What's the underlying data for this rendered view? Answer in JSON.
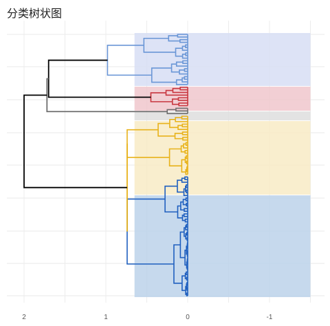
{
  "title": "分类树状图",
  "chart_data": {
    "type": "dendrogram",
    "orientation": "horizontal",
    "x_reversed": true,
    "xlim": [
      2.1,
      -1.5
    ],
    "xticks": [
      2,
      1,
      0,
      -1
    ],
    "xtick_labels": [
      "2",
      "1",
      "0",
      "-1"
    ],
    "grid": true,
    "leaf_count": 100,
    "clusters": [
      {
        "id": "c1",
        "color": "#6a96d6",
        "band_color": "#d7def5",
        "leaf_range": [
          1,
          20
        ],
        "merge_height": 0.98
      },
      {
        "id": "c2",
        "color": "#c8363f",
        "band_color": "#f0c7cc",
        "leaf_range": [
          21,
          28
        ],
        "merge_height": 0.45
      },
      {
        "id": "c3",
        "color": "#6e6e6e",
        "band_color": "#dedede",
        "leaf_range": [
          29,
          31
        ],
        "merge_height": 0.25
      },
      {
        "id": "c4",
        "color": "#e8b21a",
        "band_color": "#f8ebc6",
        "leaf_range": [
          32,
          54
        ],
        "merge_height": 0.74
      },
      {
        "id": "c5",
        "color": "#1f5fbf",
        "band_color": "#bcd2ea",
        "leaf_range": [
          55,
          100
        ],
        "merge_height": 0.74
      }
    ],
    "merges": [
      {
        "a": "c1",
        "b": "c2",
        "height": 1.7,
        "color": "#000000"
      },
      {
        "a": "c1c2",
        "b": "c3",
        "height": 1.72,
        "color": "#6e6e6e"
      },
      {
        "a": "c4",
        "b": "c5",
        "height": 0.74,
        "color": "#e8b21a"
      },
      {
        "a": "top",
        "b": "bottom",
        "height": 2.0,
        "color": "#000000"
      }
    ],
    "band_xrange": [
      0.65,
      -1.5
    ]
  }
}
